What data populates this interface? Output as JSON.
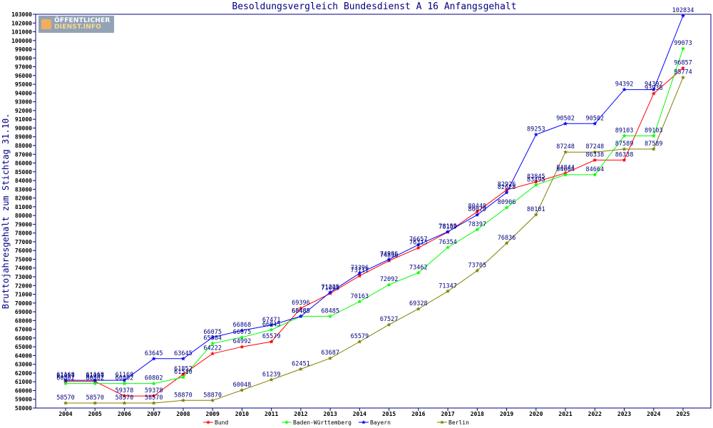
{
  "chart_data": {
    "type": "line",
    "title": "Besoldungsvergleich Bundesdienst A 16 Anfangsgehalt",
    "xlabel": "",
    "ylabel": "Bruttojahresgehalt zum Stichtag 31.10.",
    "x": [
      "2004",
      "2005",
      "2006",
      "2007",
      "2008",
      "2009",
      "2010",
      "2011",
      "2012",
      "2013",
      "2014",
      "2015",
      "2016",
      "2017",
      "2018",
      "2019",
      "2020",
      "2021",
      "2022",
      "2023",
      "2024",
      "2025"
    ],
    "ylim": [
      58000,
      103000
    ],
    "ytick_step": 1000,
    "grid": false,
    "legend_position": "bottom",
    "series": [
      {
        "name": "Bund",
        "color": "#ff0000",
        "values": [
          61037,
          61037,
          59378,
          59378,
          61852,
          64222,
          64992,
          65579,
          69396,
          71095,
          73111,
          74836,
          76313,
          78109,
          80440,
          82926,
          83845,
          84844,
          86338,
          86338,
          93936,
          96857
        ]
      },
      {
        "name": "Baden-Württemberg",
        "color": "#00ff00",
        "values": [
          60802,
          60802,
          60802,
          60802,
          61510,
          65384,
          66075,
          66945,
          68485,
          68485,
          70163,
          72092,
          73462,
          76354,
          78397,
          80906,
          83495,
          84664,
          84664,
          89103,
          89103,
          99073
        ]
      },
      {
        "name": "Bayern",
        "color": "#0000ff",
        "values": [
          61168,
          61168,
          61168,
          63645,
          63645,
          66075,
          66868,
          67471,
          68485,
          71225,
          73396,
          74986,
          76657,
          78155,
          80079,
          82628,
          89253,
          90502,
          90502,
          94392,
          94392,
          102834
        ]
      },
      {
        "name": "Berlin",
        "color": "#808000",
        "values": [
          58570,
          58570,
          58570,
          58570,
          58870,
          58870,
          60048,
          61239,
          62451,
          63687,
          65579,
          67527,
          69328,
          71347,
          73705,
          76836,
          80101,
          87248,
          87248,
          87589,
          87589,
          95774
        ]
      }
    ]
  },
  "logo": {
    "line1": "ÖFFENTLICHER",
    "line2": "DIENST.INFO"
  }
}
